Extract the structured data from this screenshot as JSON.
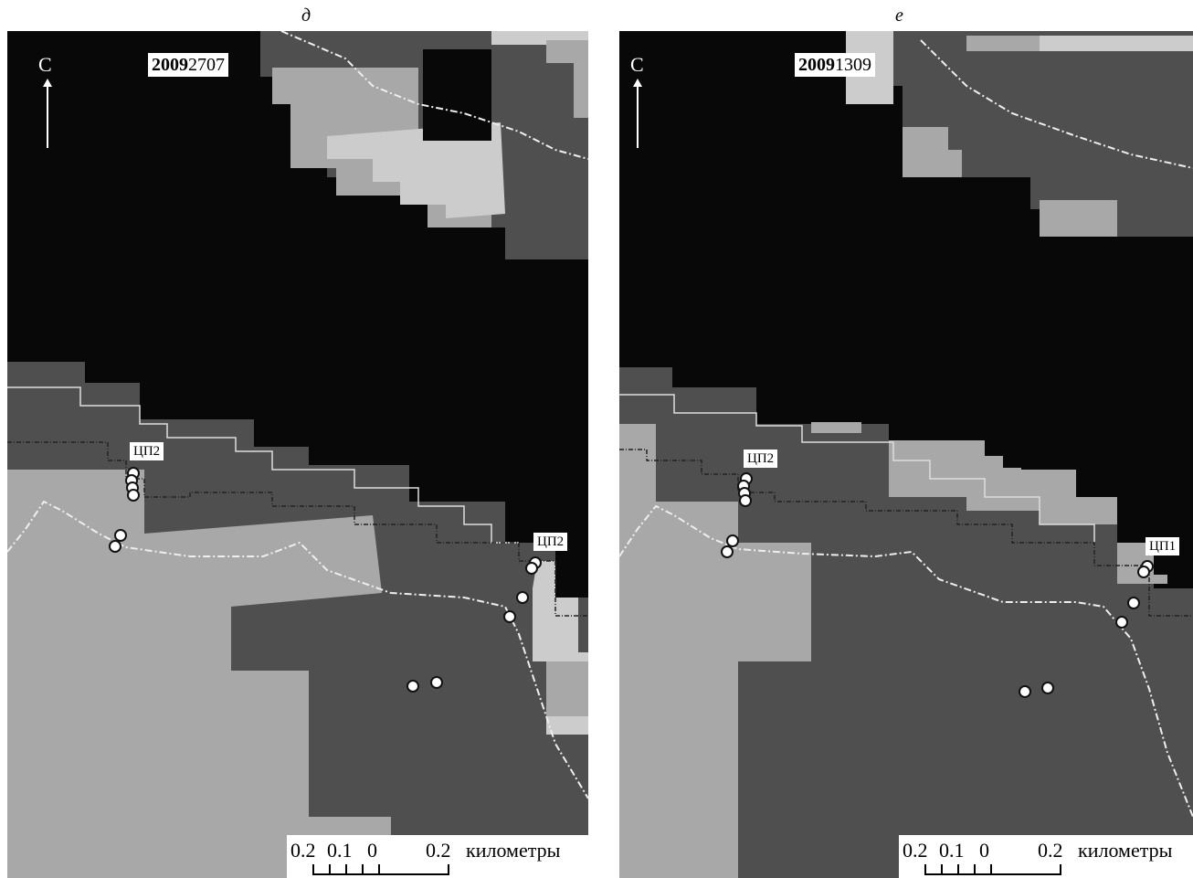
{
  "panels": [
    {
      "letter": "д",
      "north": "С",
      "date_bold": "2009",
      "date_rest": "2707",
      "cp_labels": [
        "ЦП2",
        "ЦП2"
      ],
      "scale": {
        "values": [
          "0.2",
          "0.1",
          "0",
          "0.2"
        ],
        "unit": "километры"
      }
    },
    {
      "letter": "е",
      "north": "С",
      "date_bold": "2009",
      "date_rest": "1309",
      "cp_labels": [
        "ЦП2",
        "ЦП1"
      ],
      "scale": {
        "values": [
          "0.2",
          "0.1",
          "0",
          "0.2"
        ],
        "unit": "километры"
      }
    }
  ],
  "colors": {
    "background": "#080808",
    "dark_gray": "#4f4f4f",
    "mid_gray": "#a8a8a8",
    "light_gray": "#cccccc"
  }
}
